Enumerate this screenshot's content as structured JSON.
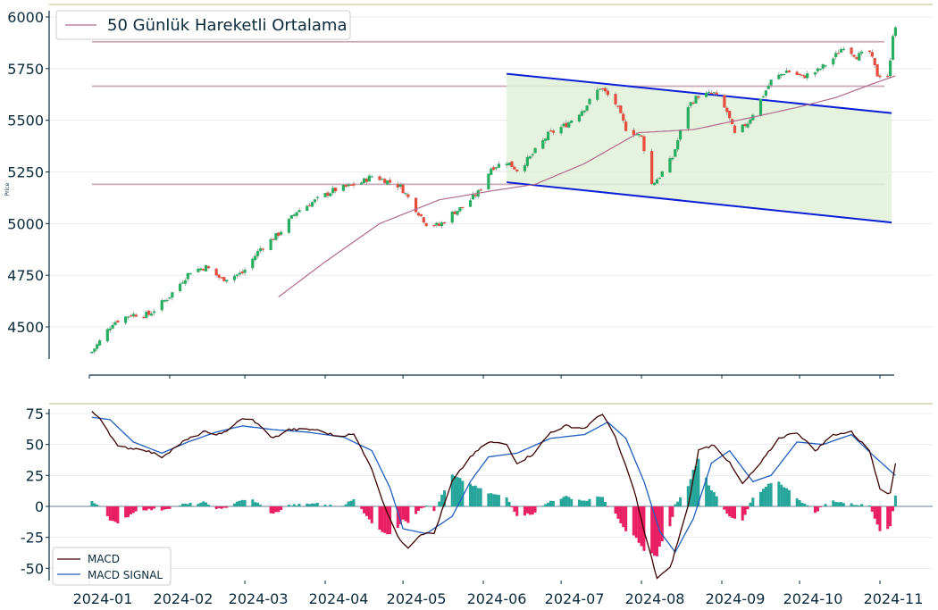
{
  "chart_data": [
    {
      "type": "candlestick",
      "ylabel": "Price",
      "ylim": [
        4330,
        6010
      ],
      "yticks": [
        4500,
        4750,
        5000,
        5250,
        5500,
        5750,
        6000
      ],
      "legend": {
        "placement": "top-left",
        "entries": [
          "50 Günlük Hareketli Ortalama"
        ]
      },
      "grid": true,
      "colors": {
        "up": "#27ae60",
        "down": "#e74c3c",
        "ma": "#b06a8c",
        "channel": "#0b1fd6",
        "channel_fill": "#dff0d8",
        "level": "#c9a9b8"
      },
      "horizontal_levels": [
        5880,
        5665,
        5190
      ],
      "channel": {
        "upper": {
          "from": [
            "2024-06-10",
            5725
          ],
          "to": [
            "2024-10-31",
            5535
          ]
        },
        "lower": {
          "from": [
            "2024-06-10",
            5200
          ],
          "to": [
            "2024-10-31",
            5005
          ]
        }
      },
      "close_waypoints": [
        [
          "2024-01-02",
          4380
        ],
        [
          "2024-01-05",
          4430
        ],
        [
          "2024-01-10",
          4520
        ],
        [
          "2024-01-17",
          4560
        ],
        [
          "2024-01-24",
          4560
        ],
        [
          "2024-02-01",
          4650
        ],
        [
          "2024-02-09",
          4770
        ],
        [
          "2024-02-15",
          4790
        ],
        [
          "2024-02-21",
          4730
        ],
        [
          "2024-02-29",
          4760
        ],
        [
          "2024-03-07",
          4880
        ],
        [
          "2024-03-14",
          4950
        ],
        [
          "2024-03-21",
          5060
        ],
        [
          "2024-03-28",
          5110
        ],
        [
          "2024-04-04",
          5160
        ],
        [
          "2024-04-10",
          5180
        ],
        [
          "2024-04-15",
          5200
        ],
        [
          "2024-04-19",
          5230
        ],
        [
          "2024-04-24",
          5210
        ],
        [
          "2024-04-30",
          5180
        ],
        [
          "2024-05-06",
          5070
        ],
        [
          "2024-05-10",
          5000
        ],
        [
          "2024-05-15",
          4990
        ],
        [
          "2024-05-20",
          5050
        ],
        [
          "2024-05-24",
          5080
        ],
        [
          "2024-05-30",
          5150
        ],
        [
          "2024-06-04",
          5270
        ],
        [
          "2024-06-10",
          5300
        ],
        [
          "2024-06-14",
          5260
        ],
        [
          "2024-06-19",
          5320
        ],
        [
          "2024-06-26",
          5430
        ],
        [
          "2024-07-03",
          5480
        ],
        [
          "2024-07-10",
          5560
        ],
        [
          "2024-07-16",
          5660
        ],
        [
          "2024-07-22",
          5580
        ],
        [
          "2024-07-26",
          5460
        ],
        [
          "2024-08-01",
          5420
        ],
        [
          "2024-08-05",
          5190
        ],
        [
          "2024-08-08",
          5230
        ],
        [
          "2024-08-13",
          5320
        ],
        [
          "2024-08-19",
          5570
        ],
        [
          "2024-08-23",
          5620
        ],
        [
          "2024-08-29",
          5630
        ],
        [
          "2024-09-03",
          5540
        ],
        [
          "2024-09-06",
          5430
        ],
        [
          "2024-09-11",
          5490
        ],
        [
          "2024-09-16",
          5600
        ],
        [
          "2024-09-20",
          5690
        ],
        [
          "2024-09-26",
          5740
        ],
        [
          "2024-10-02",
          5710
        ],
        [
          "2024-10-08",
          5740
        ],
        [
          "2024-10-14",
          5800
        ],
        [
          "2024-10-18",
          5860
        ],
        [
          "2024-10-23",
          5810
        ],
        [
          "2024-10-28",
          5830
        ],
        [
          "2024-10-31",
          5720
        ],
        [
          "2024-11-04",
          5715
        ],
        [
          "2024-11-05",
          5780
        ],
        [
          "2024-11-06",
          5920
        ],
        [
          "2024-11-07",
          5960
        ]
      ],
      "ma50_waypoints": [
        [
          "2024-03-14",
          4645
        ],
        [
          "2024-04-01",
          4815
        ],
        [
          "2024-04-22",
          5000
        ],
        [
          "2024-05-15",
          5115
        ],
        [
          "2024-06-05",
          5160
        ],
        [
          "2024-06-21",
          5190
        ],
        [
          "2024-07-10",
          5290
        ],
        [
          "2024-07-31",
          5440
        ],
        [
          "2024-08-21",
          5455
        ],
        [
          "2024-09-13",
          5515
        ],
        [
          "2024-10-01",
          5565
        ],
        [
          "2024-10-15",
          5610
        ],
        [
          "2024-10-31",
          5685
        ],
        [
          "2024-11-07",
          5715
        ]
      ]
    },
    {
      "type": "line+bar",
      "ylim": [
        -60,
        78
      ],
      "yticks": [
        -50,
        -25,
        0,
        25,
        50,
        75
      ],
      "xticks": [
        "2024-01",
        "2024-02",
        "2024-03",
        "2024-04",
        "2024-05",
        "2024-06",
        "2024-07",
        "2024-08",
        "2024-09",
        "2024-10",
        "2024-11"
      ],
      "legend": {
        "placement": "bottom-left",
        "entries": [
          "MACD",
          "MACD SIGNAL"
        ]
      },
      "grid": true,
      "colors": {
        "macd": "#3d0000",
        "signal": "#1f5fbf",
        "hist_pos": "#26a69a",
        "hist_neg": "#e91e63",
        "zero": "#8a9aa6"
      },
      "macd_waypoints": [
        [
          "2024-01-02",
          76
        ],
        [
          "2024-01-05",
          72
        ],
        [
          "2024-01-12",
          48
        ],
        [
          "2024-01-22",
          46
        ],
        [
          "2024-01-29",
          40
        ],
        [
          "2024-02-06",
          52
        ],
        [
          "2024-02-14",
          60
        ],
        [
          "2024-02-21",
          58
        ],
        [
          "2024-02-28",
          70
        ],
        [
          "2024-03-04",
          70
        ],
        [
          "2024-03-12",
          55
        ],
        [
          "2024-03-18",
          62
        ],
        [
          "2024-03-28",
          62
        ],
        [
          "2024-04-05",
          57
        ],
        [
          "2024-04-12",
          58
        ],
        [
          "2024-04-18",
          35
        ],
        [
          "2024-04-24",
          0
        ],
        [
          "2024-04-29",
          -25
        ],
        [
          "2024-05-03",
          -33
        ],
        [
          "2024-05-08",
          -22
        ],
        [
          "2024-05-13",
          -22
        ],
        [
          "2024-05-20",
          20
        ],
        [
          "2024-05-27",
          40
        ],
        [
          "2024-06-03",
          52
        ],
        [
          "2024-06-10",
          50
        ],
        [
          "2024-06-14",
          35
        ],
        [
          "2024-06-20",
          42
        ],
        [
          "2024-06-27",
          60
        ],
        [
          "2024-07-03",
          65
        ],
        [
          "2024-07-10",
          63
        ],
        [
          "2024-07-17",
          75
        ],
        [
          "2024-07-22",
          55
        ],
        [
          "2024-07-29",
          15
        ],
        [
          "2024-08-02",
          -20
        ],
        [
          "2024-08-07",
          -58
        ],
        [
          "2024-08-12",
          -50
        ],
        [
          "2024-08-19",
          0
        ],
        [
          "2024-08-23",
          45
        ],
        [
          "2024-08-29",
          50
        ],
        [
          "2024-09-04",
          35
        ],
        [
          "2024-09-09",
          18
        ],
        [
          "2024-09-16",
          35
        ],
        [
          "2024-09-23",
          55
        ],
        [
          "2024-09-30",
          60
        ],
        [
          "2024-10-07",
          45
        ],
        [
          "2024-10-14",
          58
        ],
        [
          "2024-10-21",
          60
        ],
        [
          "2024-10-28",
          45
        ],
        [
          "2024-11-01",
          15
        ],
        [
          "2024-11-05",
          10
        ],
        [
          "2024-11-07",
          35
        ]
      ],
      "signal_waypoints": [
        [
          "2024-01-02",
          72
        ],
        [
          "2024-01-09",
          70
        ],
        [
          "2024-01-18",
          52
        ],
        [
          "2024-01-29",
          43
        ],
        [
          "2024-02-08",
          52
        ],
        [
          "2024-02-19",
          60
        ],
        [
          "2024-02-29",
          65
        ],
        [
          "2024-03-12",
          62
        ],
        [
          "2024-03-25",
          60
        ],
        [
          "2024-04-08",
          56
        ],
        [
          "2024-04-19",
          45
        ],
        [
          "2024-04-26",
          15
        ],
        [
          "2024-05-01",
          -18
        ],
        [
          "2024-05-10",
          -22
        ],
        [
          "2024-05-20",
          -8
        ],
        [
          "2024-05-27",
          20
        ],
        [
          "2024-06-03",
          40
        ],
        [
          "2024-06-14",
          43
        ],
        [
          "2024-06-27",
          55
        ],
        [
          "2024-07-10",
          58
        ],
        [
          "2024-07-19",
          68
        ],
        [
          "2024-07-26",
          55
        ],
        [
          "2024-08-02",
          20
        ],
        [
          "2024-08-08",
          -20
        ],
        [
          "2024-08-14",
          -37
        ],
        [
          "2024-08-21",
          -10
        ],
        [
          "2024-08-28",
          35
        ],
        [
          "2024-09-04",
          45
        ],
        [
          "2024-09-13",
          20
        ],
        [
          "2024-09-20",
          25
        ],
        [
          "2024-09-30",
          52
        ],
        [
          "2024-10-10",
          50
        ],
        [
          "2024-10-21",
          58
        ],
        [
          "2024-10-30",
          40
        ],
        [
          "2024-11-07",
          25
        ]
      ]
    }
  ]
}
